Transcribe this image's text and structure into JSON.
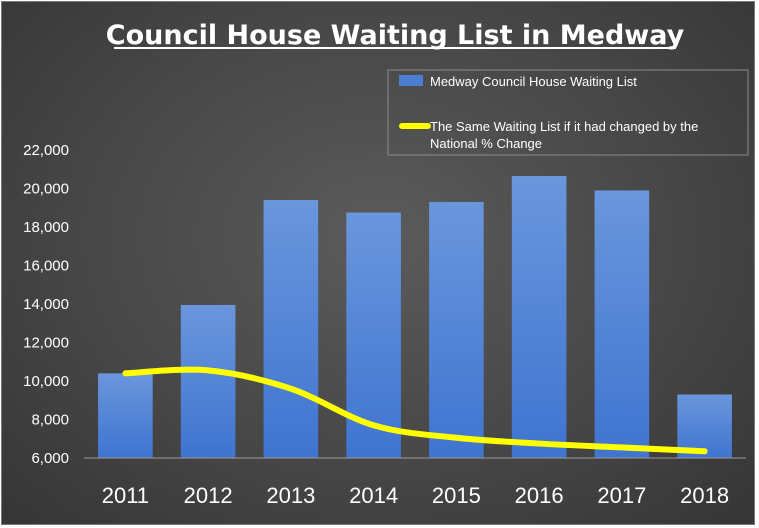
{
  "chart_data": {
    "type": "bar",
    "title": "Council House Waiting List in Medway",
    "categories": [
      "2011",
      "2012",
      "2013",
      "2014",
      "2015",
      "2016",
      "2017",
      "2018"
    ],
    "series": [
      {
        "name": "Medway Council House Waiting List",
        "kind": "bar",
        "color": "#4a7fd4",
        "values": [
          10400,
          13950,
          19400,
          18750,
          19300,
          20650,
          19900,
          9300
        ]
      },
      {
        "name": "The Same Waiting List if it had changed by the National % Change",
        "kind": "line",
        "color": "#ffff00",
        "values": [
          10400,
          10550,
          9600,
          7700,
          7050,
          6750,
          6550,
          6350
        ]
      }
    ],
    "ylim": [
      6000,
      22000
    ],
    "yticks": [
      6000,
      8000,
      10000,
      12000,
      14000,
      16000,
      18000,
      20000,
      22000
    ],
    "ytick_labels": [
      "6,000",
      "8,000",
      "10,000",
      "12,000",
      "14,000",
      "16,000",
      "18,000",
      "20,000",
      "22,000"
    ],
    "grid": false,
    "legend_position": "top-right",
    "background": "#454545"
  }
}
